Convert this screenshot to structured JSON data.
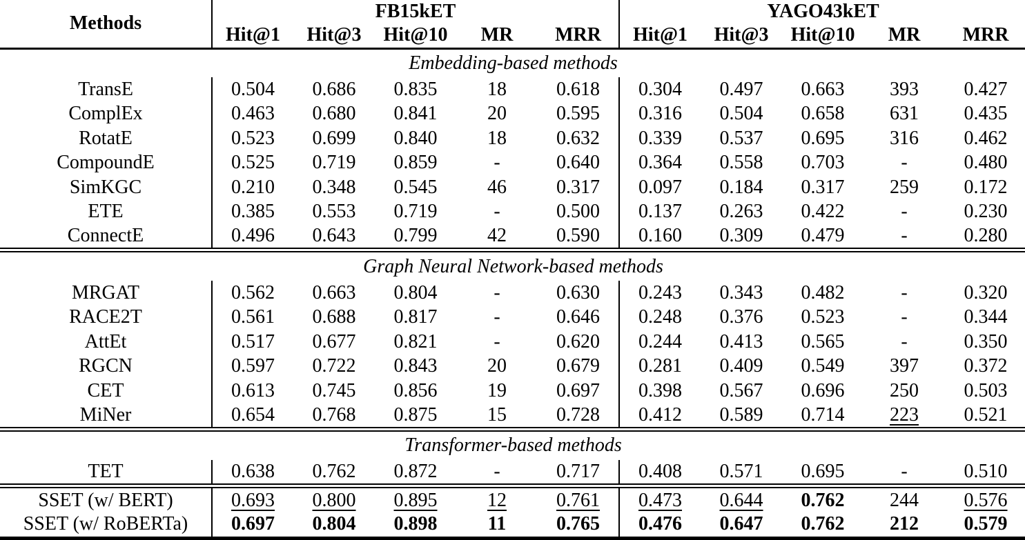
{
  "colors": {
    "text": "#000000",
    "background": "#ffffff",
    "rule": "#000000"
  },
  "table": {
    "header": {
      "methods_label": "Methods",
      "groups": [
        {
          "label": "FB15kET"
        },
        {
          "label": "YAGO43kET"
        }
      ],
      "metric_labels": [
        "Hit@1",
        "Hit@3",
        "Hit@10",
        "MR",
        "MRR"
      ]
    },
    "style_legend": {
      "p": "plain",
      "u": "underlined (second best)",
      "b": "bold (best)"
    },
    "sections": [
      {
        "title": "Embedding-based methods",
        "rows": [
          {
            "method": "TransE",
            "values": [
              "0.504",
              "0.686",
              "0.835",
              "18",
              "0.618",
              "0.304",
              "0.497",
              "0.663",
              "393",
              "0.427"
            ]
          },
          {
            "method": "ComplEx",
            "values": [
              "0.463",
              "0.680",
              "0.841",
              "20",
              "0.595",
              "0.316",
              "0.504",
              "0.658",
              "631",
              "0.435"
            ]
          },
          {
            "method": "RotatE",
            "values": [
              "0.523",
              "0.699",
              "0.840",
              "18",
              "0.632",
              "0.339",
              "0.537",
              "0.695",
              "316",
              "0.462"
            ]
          },
          {
            "method": "CompoundE",
            "values": [
              "0.525",
              "0.719",
              "0.859",
              "-",
              "0.640",
              "0.364",
              "0.558",
              "0.703",
              "-",
              "0.480"
            ]
          },
          {
            "method": "SimKGC",
            "values": [
              "0.210",
              "0.348",
              "0.545",
              "46",
              "0.317",
              "0.097",
              "0.184",
              "0.317",
              "259",
              "0.172"
            ]
          },
          {
            "method": "ETE",
            "values": [
              "0.385",
              "0.553",
              "0.719",
              "-",
              "0.500",
              "0.137",
              "0.263",
              "0.422",
              "-",
              "0.230"
            ]
          },
          {
            "method": "ConnectE",
            "values": [
              "0.496",
              "0.643",
              "0.799",
              "42",
              "0.590",
              "0.160",
              "0.309",
              "0.479",
              "-",
              "0.280"
            ]
          }
        ]
      },
      {
        "title": "Graph Neural Network-based methods",
        "rows": [
          {
            "method": "MRGAT",
            "values": [
              "0.562",
              "0.663",
              "0.804",
              "-",
              "0.630",
              "0.243",
              "0.343",
              "0.482",
              "-",
              "0.320"
            ]
          },
          {
            "method": "RACE2T",
            "values": [
              "0.561",
              "0.688",
              "0.817",
              "-",
              "0.646",
              "0.248",
              "0.376",
              "0.523",
              "-",
              "0.344"
            ]
          },
          {
            "method": "AttEt",
            "values": [
              "0.517",
              "0.677",
              "0.821",
              "-",
              "0.620",
              "0.244",
              "0.413",
              "0.565",
              "-",
              "0.350"
            ]
          },
          {
            "method": "RGCN",
            "values": [
              "0.597",
              "0.722",
              "0.843",
              "20",
              "0.679",
              "0.281",
              "0.409",
              "0.549",
              "397",
              "0.372"
            ]
          },
          {
            "method": "CET",
            "values": [
              "0.613",
              "0.745",
              "0.856",
              "19",
              "0.697",
              "0.398",
              "0.567",
              "0.696",
              "250",
              "0.503"
            ]
          },
          {
            "method": "MiNer",
            "values": [
              "0.654",
              "0.768",
              "0.875",
              "15",
              "0.728",
              "0.412",
              "0.589",
              "0.714",
              "223",
              "0.521"
            ],
            "styles": [
              "p",
              "p",
              "p",
              "p",
              "p",
              "p",
              "p",
              "p",
              "u",
              "p"
            ]
          }
        ]
      },
      {
        "title": "Transformer-based methods",
        "rows": [
          {
            "method": "TET",
            "values": [
              "0.638",
              "0.762",
              "0.872",
              "-",
              "0.717",
              "0.408",
              "0.571",
              "0.695",
              "-",
              "0.510"
            ]
          }
        ]
      }
    ],
    "result_rows": [
      {
        "method": "SSET (w/ BERT)",
        "method_bold": true,
        "values": [
          "0.693",
          "0.800",
          "0.895",
          "12",
          "0.761",
          "0.473",
          "0.644",
          "0.762",
          "244",
          "0.576"
        ],
        "styles": [
          "u",
          "u",
          "u",
          "u",
          "u",
          "u",
          "u",
          "b",
          "p",
          "u"
        ]
      },
      {
        "method": "SSET (w/ RoBERTa)",
        "method_bold": true,
        "values": [
          "0.697",
          "0.804",
          "0.898",
          "11",
          "0.765",
          "0.476",
          "0.647",
          "0.762",
          "212",
          "0.579"
        ],
        "styles": [
          "b",
          "b",
          "b",
          "b",
          "b",
          "b",
          "b",
          "b",
          "b",
          "b"
        ]
      }
    ]
  }
}
